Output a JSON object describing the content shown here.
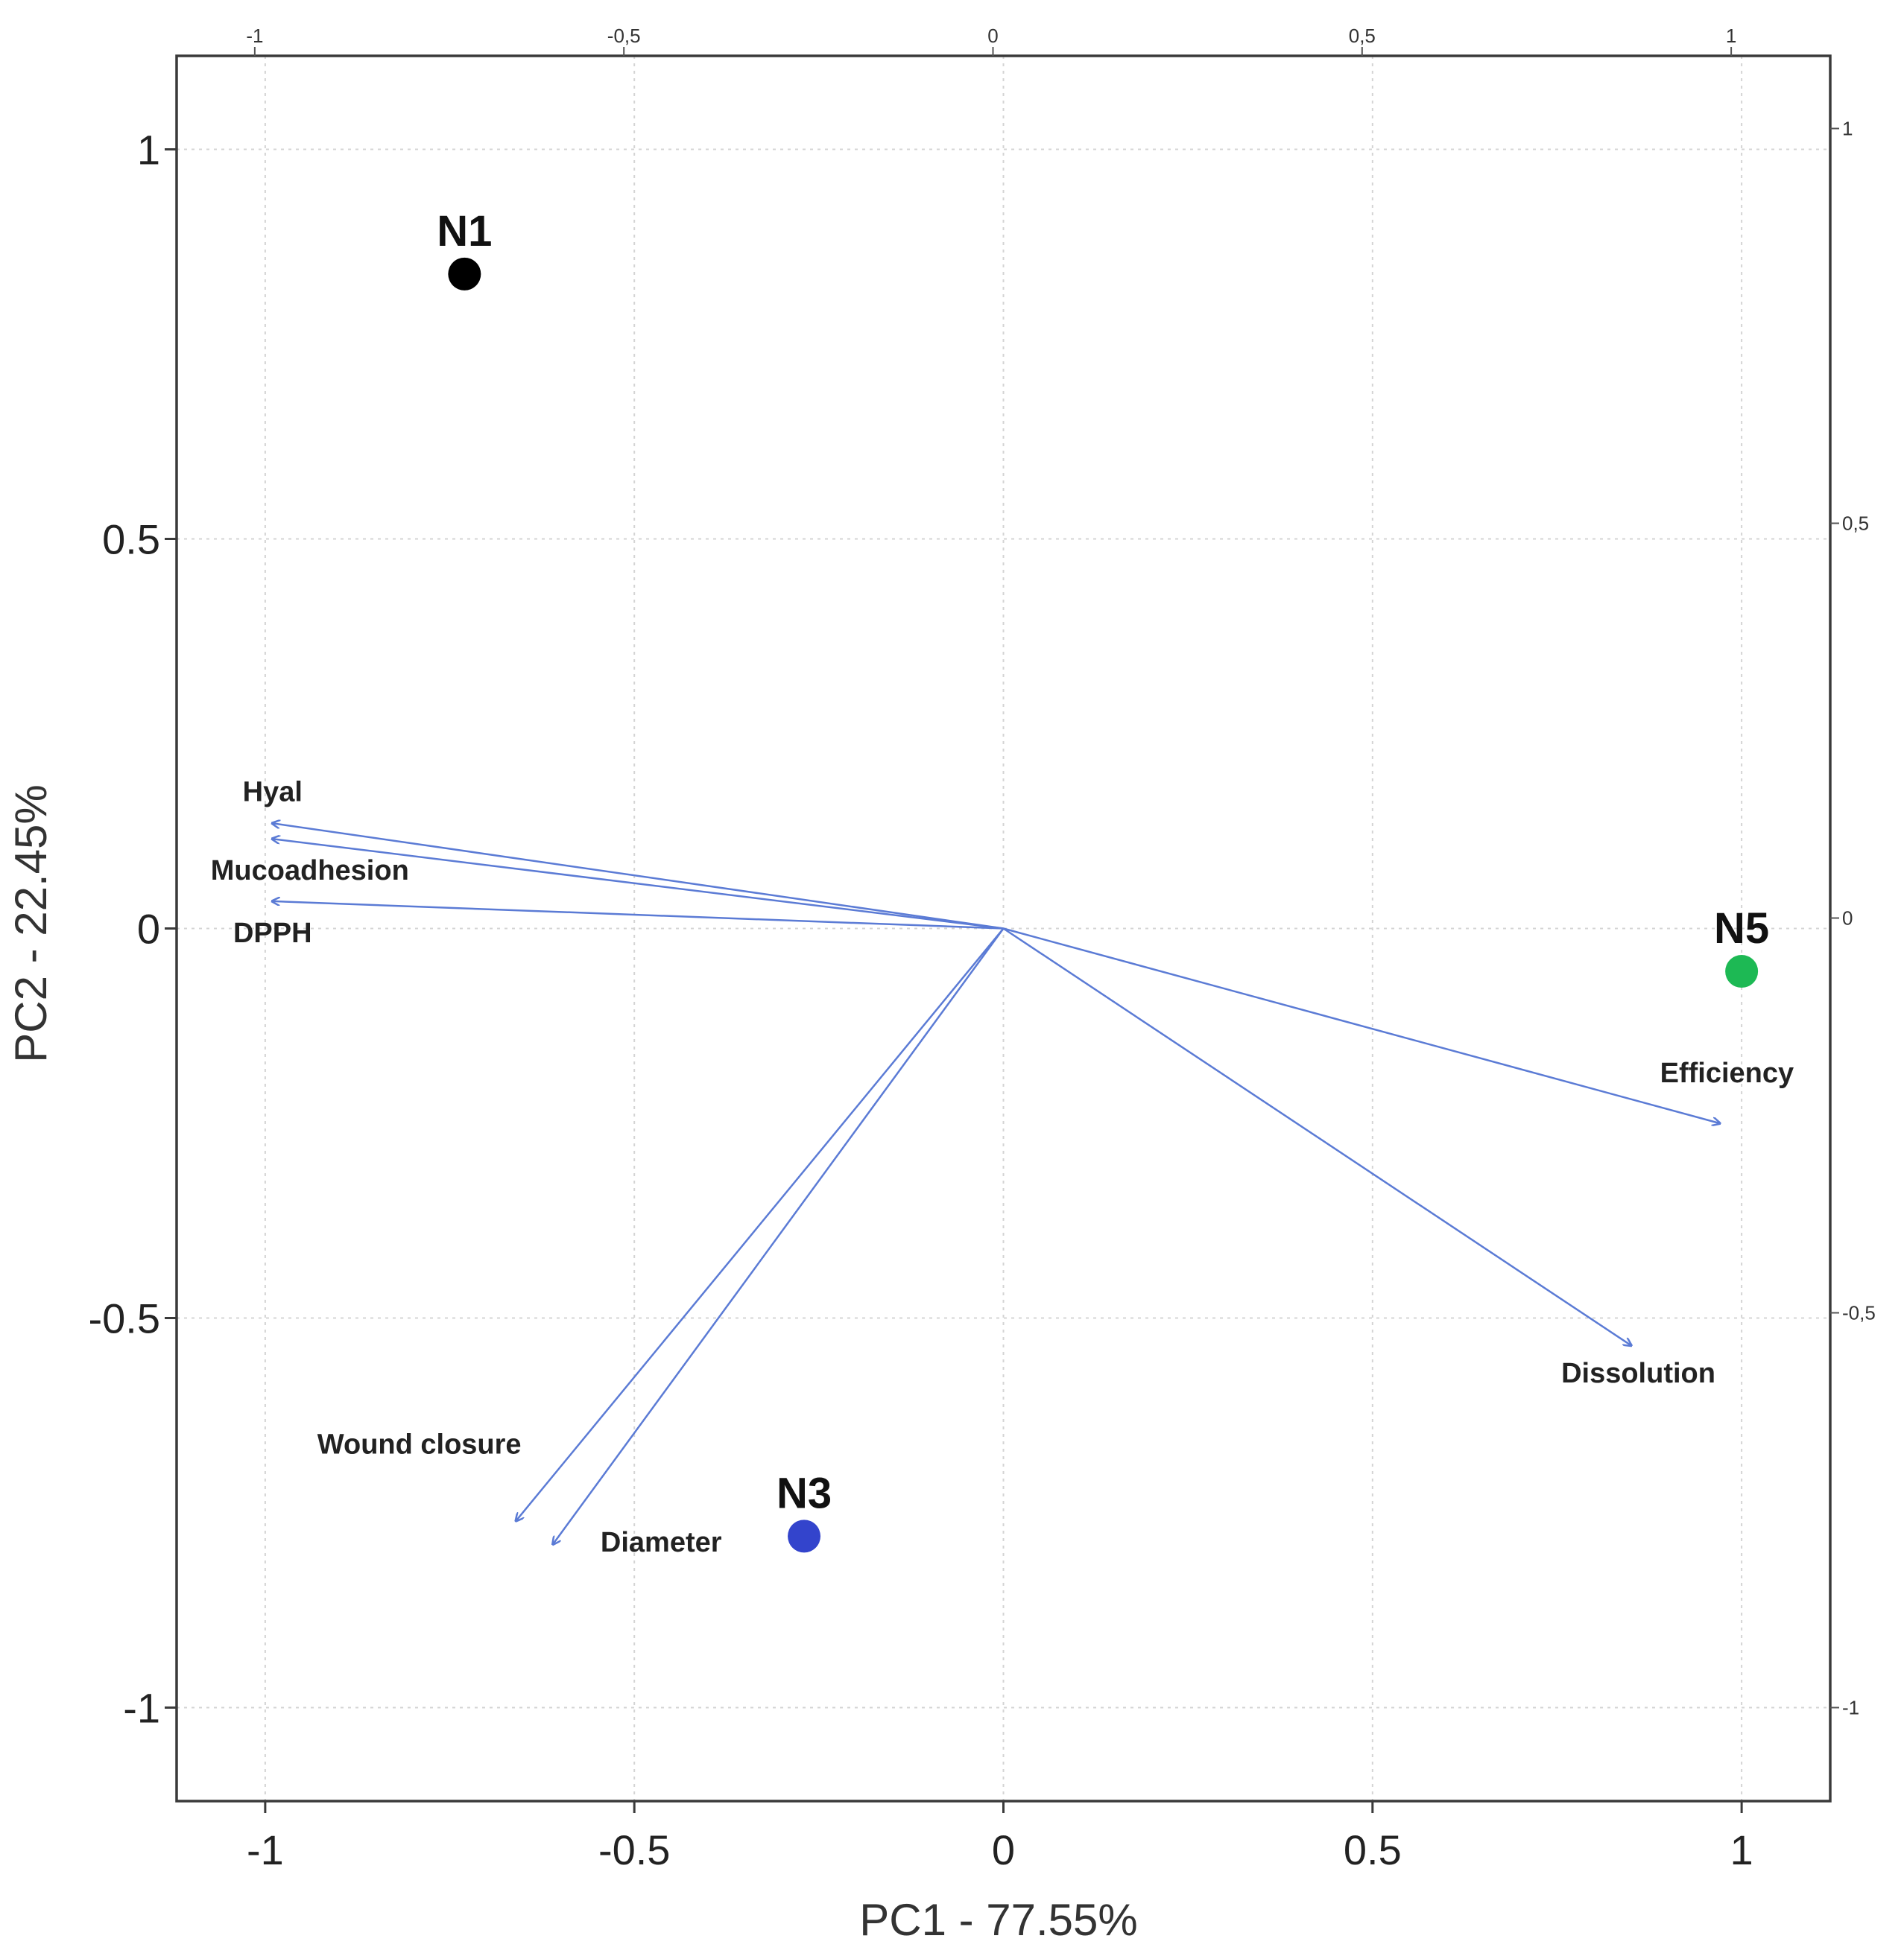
{
  "chart_data": {
    "type": "scatter",
    "subtype": "pca-biplot",
    "title": "",
    "xlabel": "PC1 - 77.55%",
    "ylabel": "PC2 - 22.45%",
    "xlim": [
      -1.12,
      1.12
    ],
    "ylim": [
      -1.12,
      1.12
    ],
    "xticks": [
      -1,
      -0.5,
      0,
      0.5,
      1
    ],
    "yticks": [
      -1,
      -0.5,
      0,
      0.5,
      1
    ],
    "xtick_labels": [
      "-1",
      "-0.5",
      "0",
      "0.5",
      "1"
    ],
    "ytick_labels": [
      "-1",
      "-0.5",
      "0",
      "0.5",
      "1"
    ],
    "secondary_xtick_labels": [
      "-1",
      "-0,5",
      "0",
      "0,5",
      "1"
    ],
    "secondary_ytick_labels": [
      "1",
      "0,5",
      "0",
      "-0,5",
      "-1"
    ],
    "grid": true,
    "observations": [
      {
        "name": "N1",
        "x": -0.73,
        "y": 0.84,
        "color": "#000000"
      },
      {
        "name": "N3",
        "x": -0.27,
        "y": -0.78,
        "color": "#3344cc"
      },
      {
        "name": "N5",
        "x": 1.0,
        "y": -0.055,
        "color": "#1db954"
      }
    ],
    "loadings": [
      {
        "name": "Hyal",
        "x": -0.99,
        "y": 0.135
      },
      {
        "name": "Mucoadhesion",
        "x": -0.99,
        "y": 0.115
      },
      {
        "name": "DPPH",
        "x": -0.99,
        "y": 0.035
      },
      {
        "name": "Efficiency",
        "x": 0.97,
        "y": -0.25
      },
      {
        "name": "Dissolution",
        "x": 0.85,
        "y": -0.535
      },
      {
        "name": "Wound closure",
        "x": -0.66,
        "y": -0.76
      },
      {
        "name": "Diameter",
        "x": -0.61,
        "y": -0.79
      }
    ],
    "vector_color": "#5b7bd5"
  }
}
